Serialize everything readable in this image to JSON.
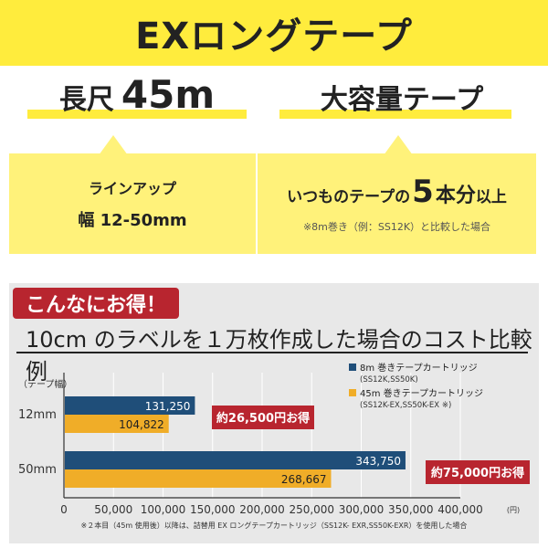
{
  "banner": {
    "title": "EXロングテープ"
  },
  "feature_left": {
    "headline_prefix": "長尺",
    "headline_value": "45m",
    "line1": "ラインアップ",
    "line2": "幅 12-50mm"
  },
  "feature_right": {
    "headline": "大容量テープ",
    "line1_prefix": "いつものテープの",
    "line1_number": "5",
    "line1_mid": "本分",
    "line1_suffix": "以上",
    "line2": "※8m巻き（例：SS12K）と比較した場合"
  },
  "chart_badge": "こんなにお得！",
  "chart_heading": "10cm のラベルを１万枚作成した場合のコスト比較例",
  "colors": {
    "banner": "#ffec3d",
    "box": "#fff27a",
    "navy": "#1f4e79",
    "orange": "#f0ad28",
    "red": "#b8252f",
    "panel": "#e8e8e8"
  },
  "chart_data": {
    "type": "bar",
    "orientation": "horizontal",
    "axis_title_categories": "（テープ幅）",
    "categories": [
      "12mm",
      "50mm"
    ],
    "series": [
      {
        "name": "8m 巻きテープカートリッジ",
        "sub": "(SS12K,SS50K)",
        "color": "#1f4e79",
        "values": [
          131250,
          343750
        ],
        "labels": [
          "131,250",
          "343,750"
        ]
      },
      {
        "name": "45m 巻きテープカートリッジ",
        "sub": "(SS12K-EX,SS50K-EX ※)",
        "color": "#f0ad28",
        "values": [
          104822,
          268667
        ],
        "labels": [
          "104,822",
          "268,667"
        ]
      }
    ],
    "xlim": [
      0,
      400000
    ],
    "xticks": [
      0,
      50000,
      100000,
      150000,
      200000,
      250000,
      300000,
      350000,
      400000
    ],
    "xtick_labels": [
      "0",
      "50,000",
      "100,000",
      "150,000",
      "200,000",
      "250,000",
      "300,000",
      "350,000",
      "400,000"
    ],
    "x_unit": "(円)",
    "savings": [
      "約26,500円お得",
      "約75,000円お得"
    ],
    "footnote": "※２本目（45m 使用後）以降は、詰替用 EX ロングテープカートリッジ（SS12K- EXR,SS50K-EXR）を使用した場合",
    "legend_position": "top-right",
    "grid": true
  }
}
